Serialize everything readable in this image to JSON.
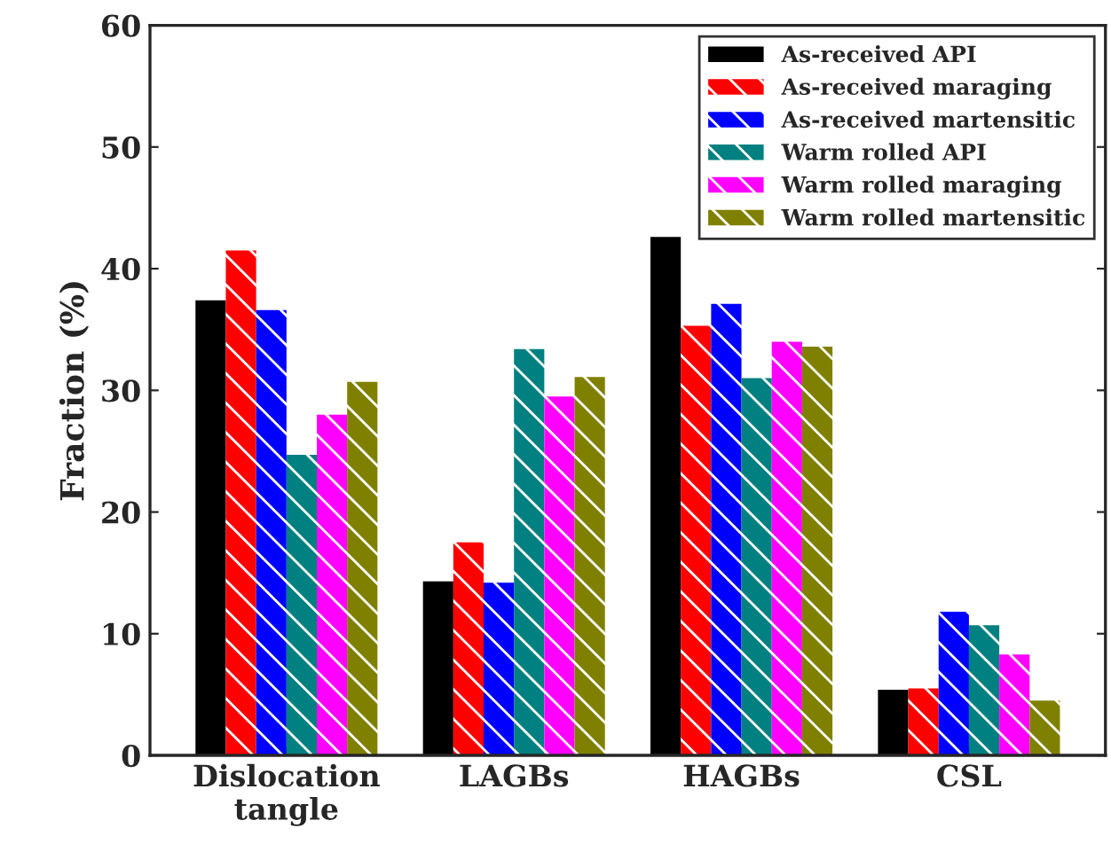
{
  "chart_data": {
    "type": "bar",
    "ylabel": "Fraction (%)",
    "categories": [
      "Dislocation\ntangle",
      "LAGBs",
      "HAGBs",
      "CSL"
    ],
    "series": [
      {
        "name": "As-received API",
        "color": "#000000",
        "values": [
          37.4,
          14.3,
          42.6,
          5.4
        ]
      },
      {
        "name": "As-received maraging",
        "color": "#ff0000",
        "values": [
          41.5,
          17.5,
          35.3,
          5.5
        ]
      },
      {
        "name": "As-received martensitic",
        "color": "#0000ff",
        "values": [
          36.6,
          14.2,
          37.1,
          11.8
        ]
      },
      {
        "name": "Warm rolled API",
        "color": "#008080",
        "values": [
          24.7,
          33.4,
          31.0,
          10.7
        ]
      },
      {
        "name": "Warm rolled maraging",
        "color": "#ff00ff",
        "values": [
          28.0,
          29.5,
          34.0,
          8.3
        ]
      },
      {
        "name": "Warm rolled martensitic",
        "color": "#808000",
        "values": [
          30.7,
          31.1,
          33.6,
          4.5
        ]
      }
    ],
    "ylim": [
      0,
      60
    ],
    "yticks": [
      0,
      10,
      20,
      30,
      40,
      50,
      60
    ],
    "legend": "top right",
    "grid": false
  }
}
